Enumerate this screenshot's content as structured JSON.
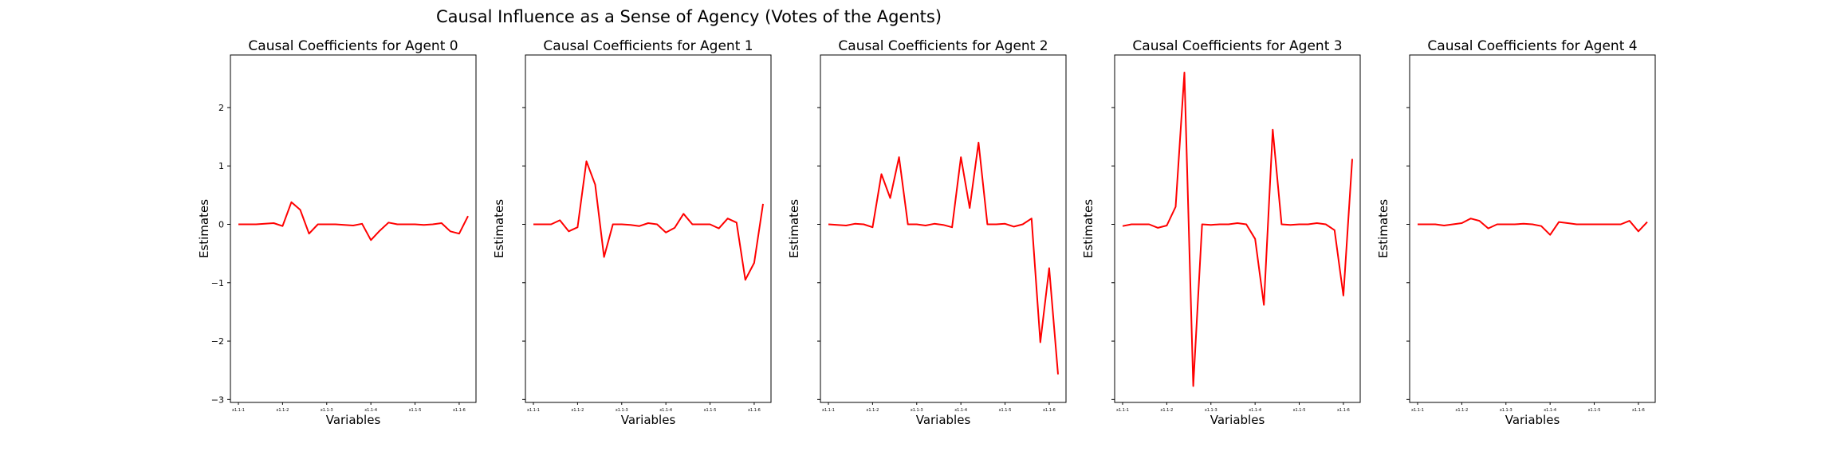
{
  "figure": {
    "title": "Causal Influence as a Sense of Agency (Votes of the Agents)"
  },
  "chart_data": [
    {
      "type": "line",
      "title": "Causal Coefficients for Agent 0",
      "xlabel": "Variables",
      "ylabel": "Estimates",
      "ylim": [
        -3.05,
        2.9
      ],
      "yticks": [
        -3,
        -2,
        -1,
        0,
        1,
        2
      ],
      "xtick_labels": [
        "x1.1-1",
        "x1.1-2",
        "x1.1-3",
        "x1.1-4",
        "x1.1-5",
        "x1.1-6"
      ],
      "xtick_positions": [
        0,
        5,
        10,
        15,
        20,
        25
      ],
      "color": "#ff0000",
      "values": [
        0.0,
        0.0,
        0.0,
        0.01,
        0.02,
        -0.03,
        0.38,
        0.25,
        -0.16,
        0.0,
        0.0,
        0.0,
        -0.01,
        -0.02,
        0.01,
        -0.27,
        -0.11,
        0.03,
        0.0,
        0.0,
        0.0,
        -0.01,
        0.0,
        0.02,
        -0.12,
        -0.16,
        0.14
      ]
    },
    {
      "type": "line",
      "title": "Causal Coefficients for Agent 1",
      "xlabel": "Variables",
      "ylabel": "Estimates",
      "ylim": [
        -3.05,
        2.9
      ],
      "yticks": [
        -3,
        -2,
        -1,
        0,
        1,
        2
      ],
      "xtick_labels": [
        "x1.1-1",
        "x1.1-2",
        "x1.1-3",
        "x1.1-4",
        "x1.1-5",
        "x1.1-6"
      ],
      "xtick_positions": [
        0,
        5,
        10,
        15,
        20,
        25
      ],
      "color": "#ff0000",
      "values": [
        0.0,
        0.0,
        0.0,
        0.07,
        -0.12,
        -0.05,
        1.08,
        0.68,
        -0.56,
        0.0,
        0.0,
        -0.01,
        -0.03,
        0.02,
        0.0,
        -0.14,
        -0.06,
        0.18,
        0.0,
        0.0,
        0.0,
        -0.07,
        0.1,
        0.03,
        -0.95,
        -0.66,
        0.35
      ]
    },
    {
      "type": "line",
      "title": "Causal Coefficients for Agent 2",
      "xlabel": "Variables",
      "ylabel": "Estimates",
      "ylim": [
        -3.05,
        2.9
      ],
      "yticks": [
        -3,
        -2,
        -1,
        0,
        1,
        2
      ],
      "xtick_labels": [
        "x1.1-1",
        "x1.1-2",
        "x1.1-3",
        "x1.1-4",
        "x1.1-5",
        "x1.1-6"
      ],
      "xtick_positions": [
        0,
        5,
        10,
        15,
        20,
        25
      ],
      "color": "#ff0000",
      "values": [
        0.0,
        -0.01,
        -0.02,
        0.01,
        0.0,
        -0.05,
        0.86,
        0.45,
        1.15,
        0.0,
        0.0,
        -0.02,
        0.01,
        -0.01,
        -0.05,
        1.15,
        0.28,
        1.4,
        0.0,
        0.0,
        0.01,
        -0.04,
        0.0,
        0.1,
        -2.02,
        -0.75,
        -2.57
      ]
    },
    {
      "type": "line",
      "title": "Causal Coefficients for Agent 3",
      "xlabel": "Variables",
      "ylabel": "Estimates",
      "ylim": [
        -3.05,
        2.9
      ],
      "yticks": [
        -3,
        -2,
        -1,
        0,
        1,
        2
      ],
      "xtick_labels": [
        "x1.1-1",
        "x1.1-2",
        "x1.1-3",
        "x1.1-4",
        "x1.1-5",
        "x1.1-6"
      ],
      "xtick_positions": [
        0,
        5,
        10,
        15,
        20,
        25
      ],
      "color": "#ff0000",
      "values": [
        -0.03,
        0.0,
        0.0,
        0.0,
        -0.06,
        -0.02,
        0.3,
        2.6,
        -2.77,
        0.0,
        -0.01,
        0.0,
        0.0,
        0.02,
        0.0,
        -0.25,
        -1.38,
        1.62,
        0.0,
        -0.01,
        0.0,
        0.0,
        0.02,
        0.0,
        -0.1,
        -1.22,
        1.12
      ]
    },
    {
      "type": "line",
      "title": "Causal Coefficients for Agent 4",
      "xlabel": "Variables",
      "ylabel": "Estimates",
      "ylim": [
        -3.05,
        2.9
      ],
      "yticks": [
        -3,
        -2,
        -1,
        0,
        1,
        2
      ],
      "xtick_labels": [
        "x1.1-1",
        "x1.1-2",
        "x1.1-3",
        "x1.1-4",
        "x1.1-5",
        "x1.1-6"
      ],
      "xtick_positions": [
        0,
        5,
        10,
        15,
        20,
        25
      ],
      "color": "#ff0000",
      "values": [
        0.0,
        0.0,
        0.0,
        -0.02,
        0.0,
        0.02,
        0.1,
        0.06,
        -0.07,
        0.0,
        0.0,
        0.0,
        0.01,
        0.0,
        -0.03,
        -0.18,
        0.04,
        0.02,
        0.0,
        0.0,
        0.0,
        0.0,
        0.0,
        0.0,
        0.06,
        -0.12,
        0.04
      ]
    }
  ]
}
